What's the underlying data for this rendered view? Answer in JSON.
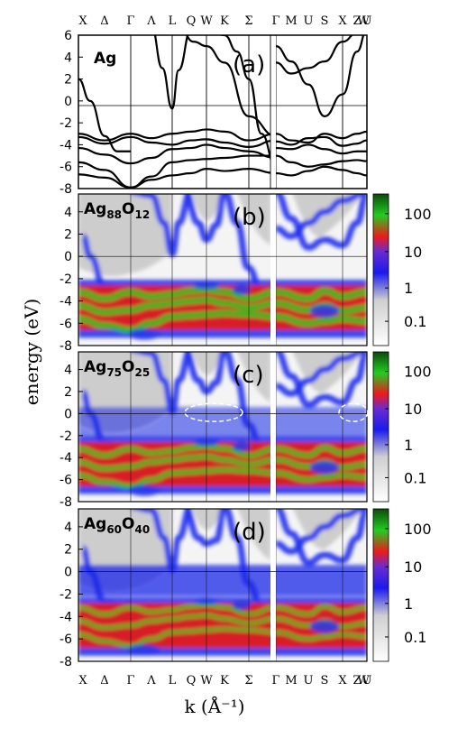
{
  "chart_data": {
    "type": "band-structure",
    "k_labels": [
      "X",
      "Δ",
      "Γ",
      "Λ",
      "L",
      "Q",
      "W",
      "K",
      "Σ",
      "Γ",
      "M",
      "U",
      "S",
      "X",
      "Z",
      "W",
      "U"
    ],
    "ylabel": "energy (eV)",
    "xlabel": "k (Å⁻¹)",
    "ylim": [
      -8,
      6
    ],
    "yticks": [
      -8,
      -6,
      -4,
      -2,
      0,
      2,
      4,
      6
    ],
    "yticks_spectral": [
      -8,
      -6,
      -4,
      -2,
      0,
      2,
      4
    ],
    "colorbar": {
      "ticks": [
        "100",
        "10",
        "1",
        "0.1"
      ],
      "scale": "log",
      "colors": [
        "#ffffff",
        "#c8c8c8",
        "#0a14f0",
        "#f01010",
        "#10d010",
        "#0a5010"
      ]
    },
    "panels": [
      {
        "label": "(a)",
        "material": "Ag",
        "kind": "bands"
      },
      {
        "label": "(b)",
        "material": "Ag",
        "sub1": "88",
        "el2": "O",
        "sub2": "12",
        "kind": "spectral"
      },
      {
        "label": "(c)",
        "material": "Ag",
        "sub1": "75",
        "el2": "O",
        "sub2": "25",
        "kind": "spectral"
      },
      {
        "label": "(d)",
        "material": "Ag",
        "sub1": "60",
        "el2": "O",
        "sub2": "40",
        "kind": "spectral"
      }
    ],
    "fermi_level": 0
  }
}
